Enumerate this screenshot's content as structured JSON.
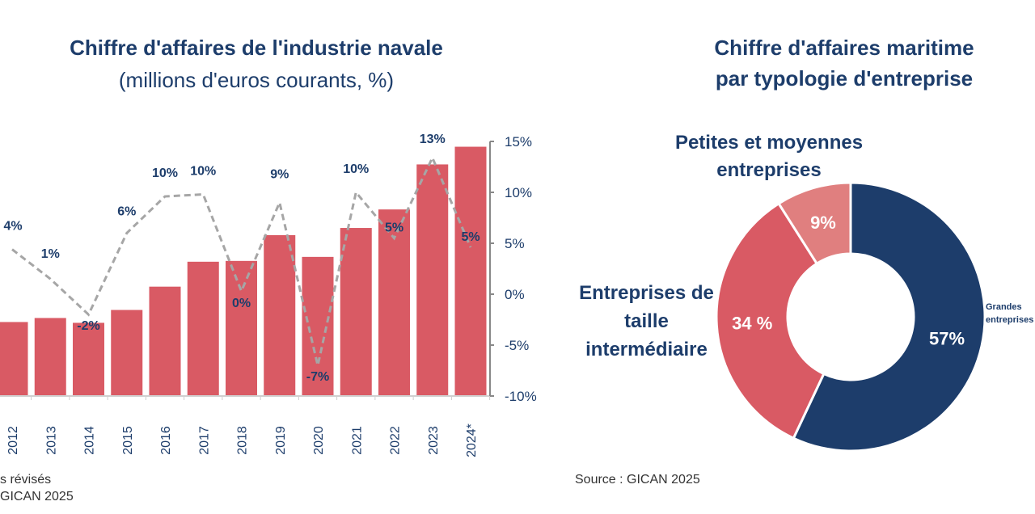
{
  "chart_data": [
    {
      "type": "bar+line",
      "title": "Chiffre d'affaires de l'industrie navale",
      "subtitle": "(millions d'euros courants, %)",
      "categories": [
        "2012",
        "2013",
        "2014",
        "2015",
        "2016",
        "2017",
        "2018",
        "2019",
        "2020",
        "2021",
        "2022",
        "2023",
        "2024*"
      ],
      "bar_series": {
        "relative_values": [
          92,
          97,
          91,
          107,
          136,
          167,
          168,
          200,
          173,
          209,
          232,
          288,
          310
        ],
        "color": "#d95a64"
      },
      "line_series": {
        "values": [
          4.4,
          1.5,
          -2,
          6,
          9.6,
          9.8,
          0.3,
          9,
          -7,
          10,
          5.5,
          13.4,
          4.6
        ],
        "labels": [
          "4%",
          "1%",
          "-2%",
          "6%",
          "10%",
          "10%",
          "0%",
          "9%",
          "-7%",
          "10%",
          "5%",
          "13%",
          "5%"
        ],
        "color": "#a6a6a6",
        "style": "dashed"
      },
      "right_axis": {
        "ylim": [
          -10,
          15
        ],
        "ticks": [
          "15%",
          "10%",
          "5%",
          "0%",
          "-5%",
          "-10%"
        ]
      },
      "footnotes": [
        "s révisés",
        "GICAN 2025"
      ]
    },
    {
      "type": "pie",
      "donut": true,
      "title_lines": [
        "Chiffre d'affaires maritime",
        "par typologie d'entreprise"
      ],
      "slices": [
        {
          "label": "Grandes entreprises",
          "value": 57,
          "value_label": "57%",
          "color": "#1d3d6b"
        },
        {
          "label": "Entreprises de taille intermédiaire",
          "value": 34,
          "value_label": "34 %",
          "color": "#d95a64"
        },
        {
          "label": "Petites et moyennes entreprises",
          "value": 9,
          "value_label": "9%",
          "color": "#e07f7f"
        }
      ],
      "source": "Source : GICAN 2025"
    }
  ]
}
